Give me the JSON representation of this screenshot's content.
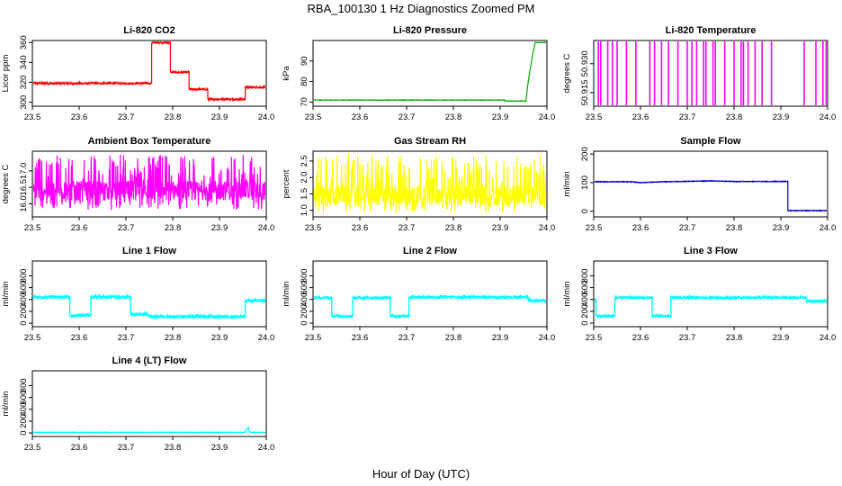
{
  "page": {
    "title": "RBA_100130  1 Hz Diagnostics Zoomed PM",
    "xlabel": "Hour of Day (UTC)"
  },
  "chart_data": [
    {
      "type": "line",
      "title": "Li-820 CO2",
      "ylabel": "Licor ppm",
      "color": "#ff0000",
      "xlim": [
        23.5,
        24.0
      ],
      "ylim": [
        296,
        362
      ],
      "xticks": [
        23.5,
        23.6,
        23.7,
        23.8,
        23.9,
        24.0
      ],
      "yticks": [
        300,
        320,
        340,
        360
      ],
      "noise": 1,
      "series": [
        {
          "x": [
            23.5,
            23.755,
            23.755,
            23.795,
            23.795,
            23.835,
            23.835,
            23.875,
            23.875,
            23.955,
            23.955,
            24.0
          ],
          "y": [
            319,
            319,
            360,
            360,
            330,
            330,
            313,
            313,
            303,
            303,
            315,
            315
          ]
        }
      ]
    },
    {
      "type": "line",
      "title": "Li-820 Pressure",
      "ylabel": "kPa",
      "color": "#00aa00",
      "xlim": [
        23.5,
        24.0
      ],
      "ylim": [
        68,
        100
      ],
      "xticks": [
        23.5,
        23.6,
        23.7,
        23.8,
        23.9,
        24.0
      ],
      "yticks": [
        70,
        80,
        90
      ],
      "noise": 0.1,
      "series": [
        {
          "x": [
            23.5,
            23.91,
            23.91,
            23.955,
            23.96,
            23.97,
            23.975,
            24.0
          ],
          "y": [
            71,
            71,
            70.5,
            70.5,
            80,
            94,
            99,
            99
          ]
        }
      ]
    },
    {
      "type": "line",
      "title": "Li-820 Temperature",
      "ylabel": "degrees C",
      "color": "#ff00ff",
      "xlim": [
        23.5,
        24.0
      ],
      "ylim": [
        50.908,
        50.942
      ],
      "xticks": [
        23.5,
        23.6,
        23.7,
        23.8,
        23.9,
        24.0
      ],
      "yticks": [
        50.915,
        50.93
      ],
      "baseline": 50.942,
      "drops_to": 50.908,
      "drop_x": [
        23.51,
        23.515,
        23.53,
        23.54,
        23.55,
        23.57,
        23.59,
        23.62,
        23.63,
        23.645,
        23.66,
        23.68,
        23.7,
        23.71,
        23.72,
        23.735,
        23.74,
        23.755,
        23.76,
        23.78,
        23.8,
        23.815,
        23.82,
        23.83,
        23.845,
        23.86,
        23.88,
        23.95,
        23.975,
        23.99,
        23.997
      ]
    },
    {
      "type": "line",
      "title": "Ambient Box Temperature",
      "ylabel": "degrees C",
      "color": "#ff00ff",
      "xlim": [
        23.5,
        24.0
      ],
      "ylim": [
        15.6,
        17.6
      ],
      "xticks": [
        23.5,
        23.6,
        23.7,
        23.8,
        23.9,
        24.0
      ],
      "yticks": [
        16.0,
        16.5,
        17.0
      ],
      "noise_band": [
        15.8,
        17.5
      ],
      "center": 16.4
    },
    {
      "type": "line",
      "title": "Gas Stream RH",
      "ylabel": "percent",
      "color": "#ffff00",
      "xlim": [
        23.5,
        24.0
      ],
      "ylim": [
        0.8,
        2.8
      ],
      "xticks": [
        23.5,
        23.6,
        23.7,
        23.8,
        23.9,
        24.0
      ],
      "yticks": [
        1.0,
        1.5,
        2.0,
        2.5
      ],
      "noise_band": [
        0.9,
        2.7
      ],
      "center": 1.45
    },
    {
      "type": "line",
      "title": "Sample Flow",
      "ylabel": "ml/min",
      "color": "#0000cc",
      "xlim": [
        23.5,
        24.0
      ],
      "ylim": [
        -20,
        210
      ],
      "xticks": [
        23.5,
        23.6,
        23.7,
        23.8,
        23.9,
        24.0
      ],
      "yticks": [
        0,
        100,
        200
      ],
      "noise": 1,
      "series": [
        {
          "x": [
            23.5,
            23.58,
            23.6,
            23.65,
            23.75,
            23.8,
            23.915,
            23.915,
            24.0
          ],
          "y": [
            103,
            103,
            100,
            103,
            106,
            104,
            104,
            2,
            2
          ]
        }
      ]
    },
    {
      "type": "line",
      "title": "Line 1 Flow",
      "ylabel": "ml/min",
      "color": "#00ffff",
      "xlim": [
        23.5,
        24.0
      ],
      "ylim": [
        -60,
        1050
      ],
      "xticks": [
        23.5,
        23.6,
        23.7,
        23.8,
        23.9,
        24.0
      ],
      "yticks": [
        0,
        200,
        400,
        600,
        800
      ],
      "noise": 25,
      "series": [
        {
          "x": [
            23.5,
            23.58,
            23.58,
            23.625,
            23.625,
            23.71,
            23.71,
            23.75,
            23.75,
            23.955,
            23.955,
            24.0
          ],
          "y": [
            440,
            440,
            130,
            130,
            440,
            440,
            150,
            150,
            110,
            110,
            380,
            380
          ]
        }
      ]
    },
    {
      "type": "line",
      "title": "Line 2 Flow",
      "ylabel": "ml/min",
      "color": "#00ffff",
      "xlim": [
        23.5,
        24.0
      ],
      "ylim": [
        -60,
        1050
      ],
      "xticks": [
        23.5,
        23.6,
        23.7,
        23.8,
        23.9,
        24.0
      ],
      "yticks": [
        0,
        200,
        400,
        600,
        800
      ],
      "noise": 20,
      "series": [
        {
          "x": [
            23.5,
            23.54,
            23.54,
            23.585,
            23.585,
            23.665,
            23.665,
            23.705,
            23.705,
            23.96,
            23.96,
            24.0
          ],
          "y": [
            430,
            430,
            120,
            120,
            430,
            430,
            120,
            120,
            440,
            440,
            380,
            380
          ]
        }
      ]
    },
    {
      "type": "line",
      "title": "Line 3 Flow",
      "ylabel": "ml/min",
      "color": "#00ffff",
      "xlim": [
        23.5,
        24.0
      ],
      "ylim": [
        -60,
        1050
      ],
      "xticks": [
        23.5,
        23.6,
        23.7,
        23.8,
        23.9,
        24.0
      ],
      "yticks": [
        0,
        200,
        400,
        600,
        800
      ],
      "noise": 20,
      "series": [
        {
          "x": [
            23.5,
            23.505,
            23.505,
            23.545,
            23.545,
            23.625,
            23.625,
            23.665,
            23.665,
            23.955,
            23.955,
            24.0
          ],
          "y": [
            400,
            400,
            120,
            120,
            430,
            430,
            120,
            120,
            430,
            430,
            370,
            370
          ]
        }
      ]
    },
    {
      "type": "line",
      "title": "Line 4 (LT) Flow",
      "ylabel": "ml/min",
      "color": "#00ffff",
      "xlim": [
        23.5,
        24.0
      ],
      "ylim": [
        -60,
        1050
      ],
      "xticks": [
        23.5,
        23.6,
        23.7,
        23.8,
        23.9,
        24.0
      ],
      "yticks": [
        0,
        200,
        400,
        600,
        800
      ],
      "noise": 4,
      "series": [
        {
          "x": [
            23.5,
            23.955,
            23.958,
            23.962,
            23.965,
            24.0
          ],
          "y": [
            10,
            10,
            70,
            90,
            10,
            10
          ]
        }
      ]
    }
  ]
}
